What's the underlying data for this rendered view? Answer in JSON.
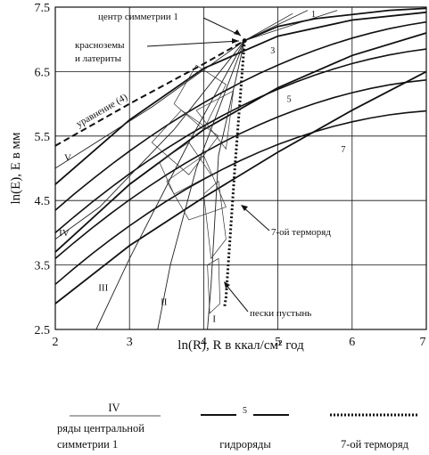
{
  "chart_data": {
    "type": "line",
    "title": "",
    "xlabel": "ln(R), R в ккал/см² год",
    "ylabel": "ln(E), E в мм",
    "xlim": [
      2,
      7
    ],
    "ylim": [
      2.5,
      7.5
    ],
    "x_ticks": [
      "2",
      "3",
      "4",
      "5",
      "6",
      "7"
    ],
    "y_ticks": [
      "2.5",
      "3.5",
      "4.5",
      "5.5",
      "6.5",
      "7.5"
    ],
    "grid": true,
    "annotations": {
      "center": "центр симметрии 1",
      "krasnozemy_1": "красноземы",
      "krasnozemy_2": "и латериты",
      "equation": "уравнение (4)",
      "thermo7": "7-ой терморяд",
      "sands": "пески пустынь"
    },
    "center_point": {
      "x": 4.55,
      "y": 6.98
    },
    "central_series": [
      {
        "name": "I",
        "label_at": [
          4.12,
          2.62
        ],
        "points": [
          [
            4.55,
            6.98
          ],
          [
            4.2,
            5.2
          ],
          [
            4.1,
            3.2
          ],
          [
            4.05,
            2.5
          ]
        ]
      },
      {
        "name": "II",
        "label_at": [
          3.42,
          2.88
        ],
        "points": [
          [
            4.55,
            6.98
          ],
          [
            3.9,
            5.0
          ],
          [
            3.55,
            3.5
          ],
          [
            3.38,
            2.5
          ]
        ]
      },
      {
        "name": "III",
        "label_at": [
          2.58,
          3.1
        ],
        "points": [
          [
            4.55,
            6.98
          ],
          [
            3.8,
            5.4
          ],
          [
            3.0,
            3.6
          ],
          [
            2.55,
            2.5
          ]
        ]
      },
      {
        "name": "IV",
        "label_at": [
          2.05,
          3.95
        ],
        "points": [
          [
            4.55,
            6.98
          ],
          [
            3.6,
            5.6
          ],
          [
            2.6,
            4.4
          ],
          [
            2.0,
            3.9
          ]
        ]
      },
      {
        "name": "V",
        "label_at": [
          2.12,
          5.12
        ],
        "points": [
          [
            4.55,
            6.98
          ],
          [
            3.3,
            5.95
          ],
          [
            2.0,
            5.0
          ]
        ]
      }
    ],
    "hydro_series": [
      {
        "name": "1",
        "label_at": [
          5.45,
          7.35
        ],
        "points": [
          [
            4.55,
            6.98
          ],
          [
            5.0,
            7.2
          ],
          [
            5.5,
            7.32
          ],
          [
            6.5,
            7.45
          ],
          [
            7.0,
            7.48
          ]
        ]
      },
      {
        "name": "3",
        "label_at": [
          4.9,
          6.78
        ],
        "points": [
          [
            2.0,
            4.75
          ],
          [
            3.0,
            5.75
          ],
          [
            4.0,
            6.55
          ],
          [
            5.0,
            7.05
          ],
          [
            6.0,
            7.3
          ],
          [
            7.0,
            7.42
          ]
        ]
      },
      {
        "name": "5",
        "label_at": [
          5.12,
          6.03
        ],
        "points": [
          [
            2.0,
            3.7
          ],
          [
            3.0,
            4.75
          ],
          [
            4.0,
            5.6
          ],
          [
            5.0,
            6.25
          ],
          [
            6.0,
            6.75
          ],
          [
            7.0,
            7.1
          ]
        ]
      },
      {
        "name": "7",
        "label_at": [
          5.85,
          5.25
        ],
        "points": [
          [
            2.0,
            2.9
          ],
          [
            3.0,
            3.8
          ],
          [
            4.0,
            4.55
          ],
          [
            5.0,
            5.25
          ],
          [
            6.0,
            5.9
          ],
          [
            7.0,
            6.5
          ]
        ]
      }
    ],
    "equation_line": [
      [
        2.0,
        5.35
      ],
      [
        3.0,
        6.0
      ],
      [
        4.0,
        6.62
      ],
      [
        4.55,
        6.98
      ]
    ],
    "thermo7_line": [
      [
        4.55,
        6.98
      ],
      [
        4.42,
        5.0
      ],
      [
        4.3,
        3.0
      ],
      [
        4.28,
        2.85
      ]
    ],
    "legend": {
      "central_numeral": "IV",
      "central_1": "ряды центральной",
      "central_2": "симметрии 1",
      "hydro_number": "5",
      "hydro": "гидроряды",
      "thermo": "7-ой терморяд"
    }
  }
}
